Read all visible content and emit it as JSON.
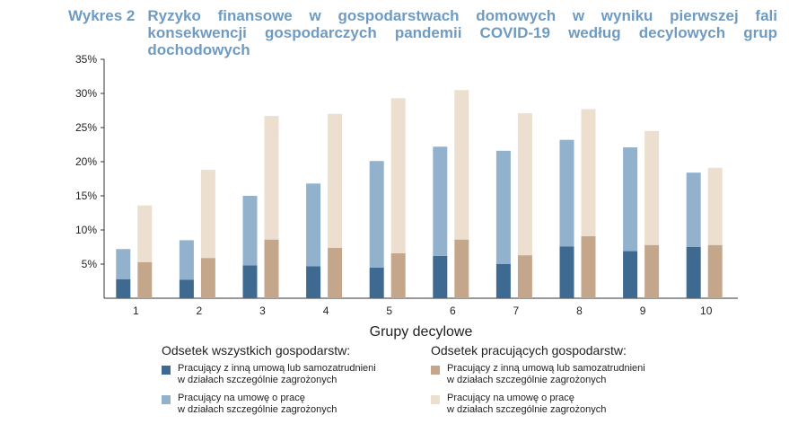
{
  "title": {
    "label": "Wykres 2",
    "text": "Ryzyko finansowe w gospodarstwach domowych w wyniku pierwszej fali konsekwencji gospodarczych pandemii COVID-19 według decylowych grup dochodowych"
  },
  "colors": {
    "all_dark": "#3e6a92",
    "all_light": "#92b1cd",
    "working_dark": "#c4a78a",
    "working_light": "#ecdfd0",
    "axis": "#333333",
    "title": "#6f9bc2"
  },
  "legend": {
    "group_all": {
      "heading": "Odsetek wszystkich gospodarstw:",
      "items": [
        {
          "label": "Pracujący z inną umową lub samozatrudnieni\nw działach szczególnie zagrożonych",
          "color": "#3e6a92"
        },
        {
          "label": "Pracujący na umowę o pracę\nw działach szczególnie zagrożonych",
          "color": "#92b1cd"
        }
      ]
    },
    "group_working": {
      "heading": "Odsetek pracujących gospodarstw:",
      "items": [
        {
          "label": "Pracujący z inną umową lub samozatrudnieni\nw działach szczególnie zagrożonych",
          "color": "#c4a78a"
        },
        {
          "label": "Pracujący na umowę o pracę\nw działach szczególnie zagrożonych",
          "color": "#ecdfd0"
        }
      ]
    }
  },
  "chart_data": {
    "type": "bar",
    "stacked": true,
    "grouped": true,
    "xlabel": "Grupy decylowe",
    "ylabel": "",
    "ylim": [
      0,
      35
    ],
    "yticks": [
      "5%",
      "10%",
      "15%",
      "20%",
      "25%",
      "30%",
      "35%"
    ],
    "ytick_values": [
      5,
      10,
      15,
      20,
      25,
      30,
      35
    ],
    "grid": false,
    "categories": [
      "1",
      "2",
      "3",
      "4",
      "5",
      "6",
      "7",
      "8",
      "9",
      "10"
    ],
    "series": [
      {
        "name": "Odsetek wszystkich gospodarstw: Pracujący z inną umową lub samozatrudnieni w działach szczególnie zagrożonych",
        "group": "all",
        "values": [
          2.8,
          2.7,
          4.8,
          4.7,
          4.5,
          6.2,
          5.0,
          7.6,
          6.9,
          7.5
        ]
      },
      {
        "name": "Odsetek wszystkich gospodarstw: Pracujący na umowę o pracę w działach szczególnie zagrożonych",
        "group": "all",
        "values": [
          4.4,
          5.8,
          10.2,
          12.1,
          15.6,
          16.0,
          16.6,
          15.6,
          15.2,
          10.9
        ]
      },
      {
        "name": "Odsetek pracujących gospodarstw: Pracujący z inną umową lub samozatrudnieni w działach szczególnie zagrożonych",
        "group": "working",
        "values": [
          5.3,
          5.9,
          8.6,
          7.4,
          6.6,
          8.6,
          6.3,
          9.1,
          7.8,
          7.8
        ]
      },
      {
        "name": "Odsetek pracujących gospodarstw: Pracujący na umowę o pracę w działach szczególnie zagrożonych",
        "group": "working",
        "values": [
          8.3,
          12.9,
          18.1,
          19.6,
          22.7,
          21.9,
          20.8,
          18.6,
          16.7,
          11.3
        ]
      }
    ]
  }
}
